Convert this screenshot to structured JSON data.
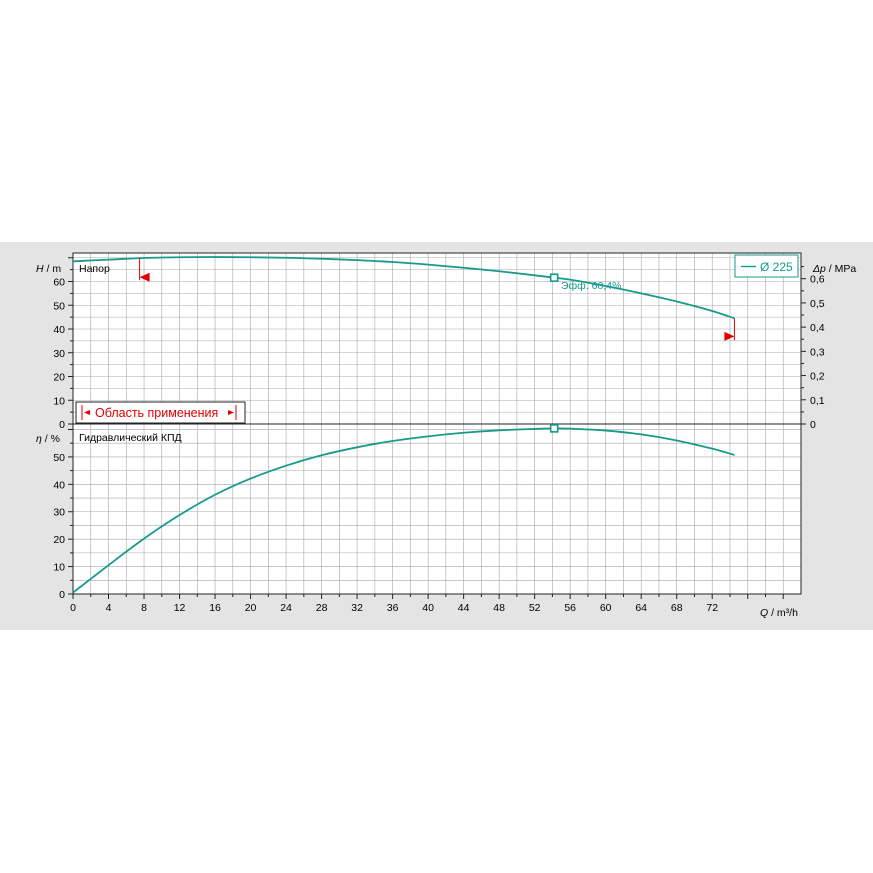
{
  "colors": {
    "curve": "#159a8c",
    "region": "#e00000",
    "grid": "#a8a8a8",
    "plot_bg": "#ffffff",
    "panel_bg": "#e4e4e4"
  },
  "chart_data": [
    {
      "type": "line",
      "title": "Напор",
      "ylabel_var": "H",
      "ylabel_unit": " / m",
      "y2label_var": "Δp",
      "y2label_unit": " / MPa",
      "ylim": [
        0,
        72
      ],
      "y_ticks": [
        0,
        10,
        20,
        30,
        40,
        50,
        60
      ],
      "y2_ticks": [
        "0",
        "0,1",
        "0,2",
        "0,3",
        "0,4",
        "0,5",
        "0,6"
      ],
      "legend": "Ø 225",
      "series": [
        {
          "name": "Ø 225",
          "x": [
            0,
            4,
            8,
            12,
            16,
            20,
            24,
            28,
            32,
            36,
            40,
            44,
            48,
            52,
            54.2,
            56,
            60,
            64,
            68,
            72,
            74.5
          ],
          "y": [
            68.5,
            69.2,
            69.9,
            70.2,
            70.3,
            70.2,
            70.0,
            69.6,
            69.0,
            68.2,
            67.1,
            65.8,
            64.3,
            62.6,
            61.6,
            60.8,
            58.1,
            55.0,
            51.6,
            47.6,
            44.5
          ]
        }
      ],
      "marker": {
        "x": 54.2,
        "y": 61.6
      },
      "annotation": "Эфф.  60,4%",
      "operating_range": {
        "label": "Область применения",
        "q_min": 7.5,
        "q_max": 74.5
      }
    },
    {
      "type": "line",
      "title": "Гидравлический КПД",
      "ylabel_var": "η",
      "ylabel_unit": " / %",
      "xlabel_var": "Q",
      "xlabel_unit": " / m³/h",
      "ylim": [
        0,
        62
      ],
      "xlim": [
        0,
        82
      ],
      "x_ticks": [
        0,
        4,
        8,
        12,
        16,
        20,
        24,
        28,
        32,
        36,
        40,
        44,
        48,
        52,
        56,
        60,
        64,
        68,
        72
      ],
      "y_ticks": [
        0,
        10,
        20,
        30,
        40,
        50
      ],
      "series": [
        {
          "name": "Ø 225",
          "x": [
            0,
            4,
            8,
            12,
            16,
            20,
            24,
            28,
            32,
            36,
            40,
            44,
            48,
            52,
            54.2,
            56,
            60,
            64,
            68,
            72,
            74.5
          ],
          "y": [
            0.5,
            10.5,
            20.2,
            28.8,
            36.2,
            42.1,
            46.8,
            50.6,
            53.5,
            55.8,
            57.5,
            58.8,
            59.7,
            60.2,
            60.4,
            60.3,
            59.6,
            58.2,
            56.0,
            53.0,
            50.7
          ]
        }
      ],
      "marker": {
        "x": 54.2,
        "y": 60.4
      }
    }
  ]
}
